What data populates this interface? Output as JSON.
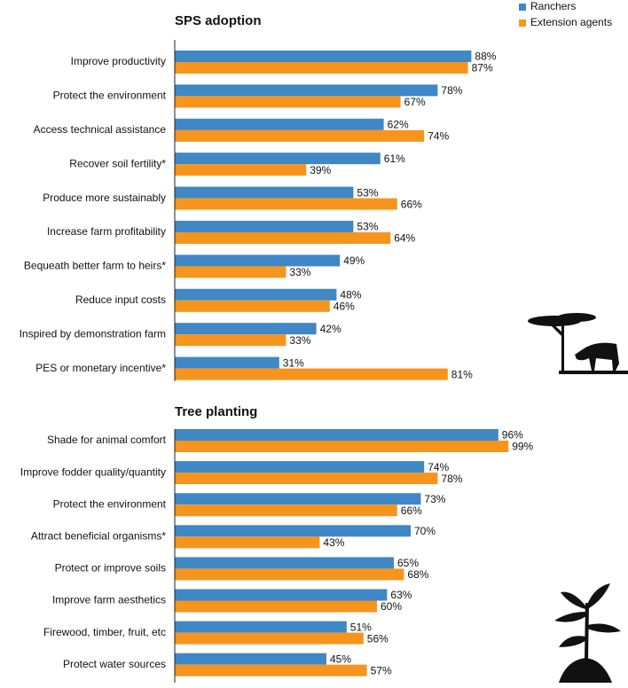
{
  "chart_data": [
    {
      "type": "bar",
      "title": "SPS adoption",
      "categories": [
        "Improve productivity",
        "Protect the environment",
        "Access technical assistance",
        "Recover soil fertility*",
        "Produce more sustainably",
        "Increase farm profitability",
        "Bequeath better farm to heirs*",
        "Reduce input costs",
        "Inspired by demonstration farm",
        "PES or monetary incentive*"
      ],
      "series": [
        {
          "name": "Ranchers",
          "color": "#3f87c5",
          "values": [
            88,
            78,
            62,
            61,
            53,
            53,
            49,
            48,
            42,
            31
          ],
          "value_labels": [
            "88%",
            "78%",
            "62%",
            "61%",
            "53%",
            "53%",
            "49%",
            "48%",
            "42%",
            "31%"
          ]
        },
        {
          "name": "Extension agents",
          "color": "#f7941d",
          "values": [
            87,
            67,
            74,
            39,
            66,
            64,
            33,
            46,
            33,
            81
          ],
          "value_labels": [
            "87%",
            "67%",
            "74%",
            "39%",
            "66%",
            "64%",
            "33%",
            "46%",
            "33%",
            "81%"
          ]
        }
      ]
    },
    {
      "type": "bar",
      "title": "Tree planting",
      "categories": [
        "Shade for animal comfort",
        "Improve fodder quality/quantity",
        "Protect the environment",
        "Attract beneficial organisms*",
        "Protect or improve soils",
        "Improve farm aesthetics",
        "Firewood, timber, fruit, etc",
        "Protect water sources"
      ],
      "series": [
        {
          "color": "#3f87c5",
          "values": [
            96,
            74,
            73,
            70,
            65,
            63,
            51,
            45
          ],
          "value_labels": [
            "96%",
            "74%",
            "73%",
            "70%",
            "65%",
            "63%",
            "51%",
            "45%"
          ]
        },
        {
          "color": "#f7941d",
          "values": [
            99,
            78,
            66,
            43,
            68,
            60,
            56,
            57
          ],
          "value_labels": [
            "99%",
            "78%",
            "66%",
            "43%",
            "68%",
            "60%",
            "56%",
            "57%"
          ]
        }
      ]
    }
  ]
}
